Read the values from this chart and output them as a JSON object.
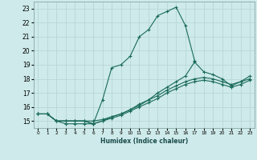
{
  "xlabel": "Humidex (Indice chaleur)",
  "bg_color": "#ceeaea",
  "grid_color": "#b8d8d8",
  "line_color": "#1a6b5a",
  "xlim": [
    -0.5,
    23.5
  ],
  "ylim": [
    14.5,
    23.5
  ],
  "xticks": [
    0,
    1,
    2,
    3,
    4,
    5,
    6,
    7,
    8,
    9,
    10,
    11,
    12,
    13,
    14,
    15,
    16,
    17,
    18,
    19,
    20,
    21,
    22,
    23
  ],
  "yticks": [
    15,
    16,
    17,
    18,
    19,
    20,
    21,
    22,
    23
  ],
  "series": [
    {
      "x": [
        0,
        1,
        2,
        3,
        4,
        5,
        6,
        7,
        8,
        9,
        10,
        11,
        12,
        13,
        14,
        15,
        16,
        17
      ],
      "y": [
        15.5,
        15.5,
        15.0,
        14.8,
        14.8,
        14.8,
        14.8,
        16.5,
        18.8,
        19.0,
        19.6,
        21.0,
        21.5,
        22.5,
        22.8,
        23.1,
        21.8,
        19.3
      ]
    },
    {
      "x": [
        0,
        1,
        2,
        3,
        4,
        5,
        6,
        7,
        8,
        9,
        10,
        11,
        12,
        13,
        14,
        15,
        16,
        17,
        18,
        19,
        20,
        21,
        22,
        23
      ],
      "y": [
        15.5,
        15.5,
        15.0,
        15.0,
        15.0,
        15.0,
        15.0,
        15.1,
        15.3,
        15.5,
        15.8,
        16.2,
        16.5,
        17.0,
        17.4,
        17.8,
        18.2,
        19.2,
        18.5,
        18.3,
        18.0,
        17.5,
        17.8,
        18.2
      ]
    },
    {
      "x": [
        0,
        1,
        2,
        3,
        4,
        5,
        6,
        7,
        8,
        9,
        10,
        11,
        12,
        13,
        14,
        15,
        16,
        17,
        18,
        19,
        20,
        21,
        22,
        23
      ],
      "y": [
        15.5,
        15.5,
        15.0,
        15.0,
        15.0,
        15.0,
        14.8,
        15.0,
        15.3,
        15.5,
        15.8,
        16.1,
        16.5,
        16.8,
        17.2,
        17.5,
        17.8,
        18.0,
        18.1,
        18.0,
        17.8,
        17.6,
        17.8,
        18.0
      ]
    },
    {
      "x": [
        0,
        1,
        2,
        3,
        4,
        5,
        6,
        7,
        8,
        9,
        10,
        11,
        12,
        13,
        14,
        15,
        16,
        17,
        18,
        19,
        20,
        21,
        22,
        23
      ],
      "y": [
        15.5,
        15.5,
        15.0,
        15.0,
        15.0,
        15.0,
        14.8,
        15.0,
        15.2,
        15.4,
        15.7,
        16.0,
        16.3,
        16.6,
        17.0,
        17.3,
        17.6,
        17.8,
        17.9,
        17.8,
        17.6,
        17.4,
        17.6,
        17.9
      ]
    }
  ]
}
